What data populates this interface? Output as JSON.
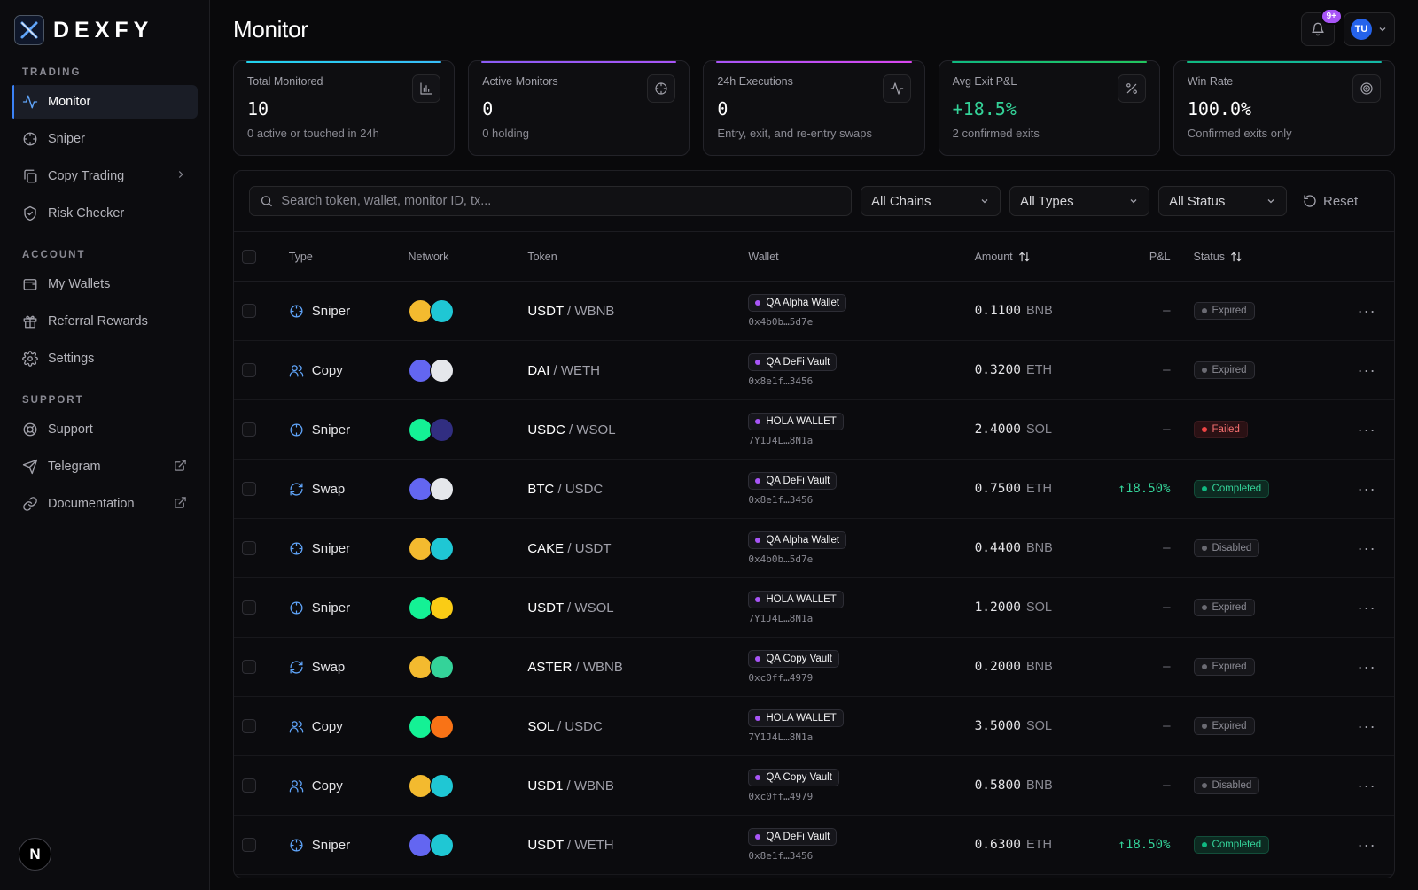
{
  "brand": {
    "name": "DEXFY"
  },
  "sidebar": {
    "sections": [
      {
        "label": "TRADING",
        "items": [
          {
            "label": "Monitor",
            "icon": "activity-icon",
            "active": true
          },
          {
            "label": "Sniper",
            "icon": "crosshair-icon"
          },
          {
            "label": "Copy Trading",
            "icon": "copy-icon",
            "trail": "chevron"
          },
          {
            "label": "Risk Checker",
            "icon": "shield-icon"
          }
        ]
      },
      {
        "label": "ACCOUNT",
        "items": [
          {
            "label": "My Wallets",
            "icon": "wallet-icon"
          },
          {
            "label": "Referral Rewards",
            "icon": "gift-icon"
          },
          {
            "label": "Settings",
            "icon": "gear-icon"
          }
        ]
      },
      {
        "label": "SUPPORT",
        "items": [
          {
            "label": "Support",
            "icon": "lifebuoy-icon"
          },
          {
            "label": "Telegram",
            "icon": "send-icon",
            "trail": "external"
          },
          {
            "label": "Documentation",
            "icon": "link-icon",
            "trail": "external"
          }
        ]
      }
    ],
    "footer_avatar": "N"
  },
  "header": {
    "title": "Monitor",
    "notifications": "9+",
    "user_initials": "TU"
  },
  "stats": [
    {
      "label": "Total Monitored",
      "value": "10",
      "sub": "0 active or touched in 24h",
      "icon": "bar-chart-icon",
      "green": false
    },
    {
      "label": "Active Monitors",
      "value": "0",
      "sub": "0 holding",
      "icon": "crosshair-icon",
      "green": false
    },
    {
      "label": "24h Executions",
      "value": "0",
      "sub": "Entry, exit, and re-entry swaps",
      "icon": "pulse-icon",
      "green": false
    },
    {
      "label": "Avg Exit P&L",
      "value": "+18.5%",
      "sub": "2 confirmed exits",
      "icon": "percent-icon",
      "green": true
    },
    {
      "label": "Win Rate",
      "value": "100.0%",
      "sub": "Confirmed exits only",
      "icon": "target-icon",
      "green": false
    }
  ],
  "filters": {
    "search_placeholder": "Search token, wallet, monitor ID, tx...",
    "chains": "All Chains",
    "types": "All Types",
    "status": "All Status",
    "reset": "Reset"
  },
  "table": {
    "columns": {
      "type": "Type",
      "network": "Network",
      "token": "Token",
      "wallet": "Wallet",
      "amount": "Amount",
      "pnl": "P&L",
      "status": "Status"
    },
    "rows": [
      {
        "type": "Sniper",
        "type_icon": "crosshair-icon",
        "coins": [
          [
            "#f3ba2f",
            "bnb"
          ],
          [
            "#1fc7d4",
            "cake"
          ]
        ],
        "token": "USDT",
        "pair": "WBNB",
        "wallet": "QA Alpha Wallet",
        "addr": "0x4b0b…5d7e",
        "amount": "0.1100",
        "unit": "BNB",
        "pnl": "—",
        "pnl_up": false,
        "status": "Expired",
        "status_kind": "expired"
      },
      {
        "type": "Copy",
        "type_icon": "users-icon",
        "coins": [
          [
            "#6366f1",
            "eth"
          ],
          [
            "#e5e7eb",
            "uni"
          ]
        ],
        "token": "DAI",
        "pair": "WETH",
        "wallet": "QA DeFi Vault",
        "addr": "0x8e1f…3456",
        "amount": "0.3200",
        "unit": "ETH",
        "pnl": "—",
        "pnl_up": false,
        "status": "Expired",
        "status_kind": "expired"
      },
      {
        "type": "Sniper",
        "type_icon": "crosshair-icon",
        "coins": [
          [
            "#14f195",
            "sol"
          ],
          [
            "#312e81",
            "ray"
          ]
        ],
        "token": "USDC",
        "pair": "WSOL",
        "wallet": "HOLA WALLET",
        "addr": "7Y1J4L…8N1a",
        "amount": "2.4000",
        "unit": "SOL",
        "pnl": "—",
        "pnl_up": false,
        "status": "Failed",
        "status_kind": "failed"
      },
      {
        "type": "Swap",
        "type_icon": "refresh-icon",
        "coins": [
          [
            "#6366f1",
            "eth"
          ],
          [
            "#e5e7eb",
            "uni"
          ]
        ],
        "token": "BTC",
        "pair": "USDC",
        "wallet": "QA DeFi Vault",
        "addr": "0x8e1f…3456",
        "amount": "0.7500",
        "unit": "ETH",
        "pnl": "↑18.50%",
        "pnl_up": true,
        "status": "Completed",
        "status_kind": "completed"
      },
      {
        "type": "Sniper",
        "type_icon": "crosshair-icon",
        "coins": [
          [
            "#f3ba2f",
            "bnb"
          ],
          [
            "#1fc7d4",
            "cake"
          ]
        ],
        "token": "CAKE",
        "pair": "USDT",
        "wallet": "QA Alpha Wallet",
        "addr": "0x4b0b…5d7e",
        "amount": "0.4400",
        "unit": "BNB",
        "pnl": "—",
        "pnl_up": false,
        "status": "Disabled",
        "status_kind": "disabled"
      },
      {
        "type": "Sniper",
        "type_icon": "crosshair-icon",
        "coins": [
          [
            "#14f195",
            "sol"
          ],
          [
            "#facc15",
            "jup"
          ]
        ],
        "token": "USDT",
        "pair": "WSOL",
        "wallet": "HOLA WALLET",
        "addr": "7Y1J4L…8N1a",
        "amount": "1.2000",
        "unit": "SOL",
        "pnl": "—",
        "pnl_up": false,
        "status": "Expired",
        "status_kind": "expired"
      },
      {
        "type": "Swap",
        "type_icon": "refresh-icon",
        "coins": [
          [
            "#f3ba2f",
            "bnb"
          ],
          [
            "#34d399",
            "aster"
          ]
        ],
        "token": "ASTER",
        "pair": "WBNB",
        "wallet": "QA Copy Vault",
        "addr": "0xc0ff…4979",
        "amount": "0.2000",
        "unit": "BNB",
        "pnl": "—",
        "pnl_up": false,
        "status": "Expired",
        "status_kind": "expired"
      },
      {
        "type": "Copy",
        "type_icon": "users-icon",
        "coins": [
          [
            "#14f195",
            "sol"
          ],
          [
            "#f97316",
            "orca"
          ]
        ],
        "token": "SOL",
        "pair": "USDC",
        "wallet": "HOLA WALLET",
        "addr": "7Y1J4L…8N1a",
        "amount": "3.5000",
        "unit": "SOL",
        "pnl": "—",
        "pnl_up": false,
        "status": "Expired",
        "status_kind": "expired"
      },
      {
        "type": "Copy",
        "type_icon": "users-icon",
        "coins": [
          [
            "#f3ba2f",
            "bnb"
          ],
          [
            "#1fc7d4",
            "cake"
          ]
        ],
        "token": "USD1",
        "pair": "WBNB",
        "wallet": "QA Copy Vault",
        "addr": "0xc0ff…4979",
        "amount": "0.5800",
        "unit": "BNB",
        "pnl": "—",
        "pnl_up": false,
        "status": "Disabled",
        "status_kind": "disabled"
      },
      {
        "type": "Sniper",
        "type_icon": "crosshair-icon",
        "coins": [
          [
            "#6366f1",
            "eth"
          ],
          [
            "#1fc7d4",
            "cake"
          ]
        ],
        "token": "USDT",
        "pair": "WETH",
        "wallet": "QA DeFi Vault",
        "addr": "0x8e1f…3456",
        "amount": "0.6300",
        "unit": "ETH",
        "pnl": "↑18.50%",
        "pnl_up": true,
        "status": "Completed",
        "status_kind": "completed"
      }
    ]
  }
}
